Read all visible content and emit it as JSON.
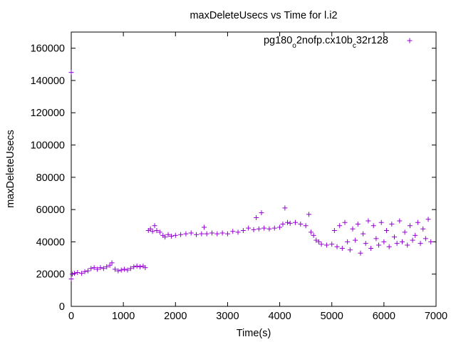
{
  "chart_data": {
    "type": "scatter",
    "title": "maxDeleteUsecs vs Time for l.i2",
    "xlabel": "Time(s)",
    "ylabel": "maxDeleteUsecs",
    "xlim": [
      0,
      7000
    ],
    "ylim": [
      0,
      170000
    ],
    "x_ticks": [
      0,
      1000,
      2000,
      3000,
      4000,
      5000,
      6000,
      7000
    ],
    "y_ticks": [
      0,
      20000,
      40000,
      60000,
      80000,
      100000,
      120000,
      140000,
      160000
    ],
    "grid": false,
    "legend_position": "top-right",
    "series": [
      {
        "name": "pg180_o2nofp.cx10b_c32r128",
        "legend_parts": [
          {
            "text": "pg180",
            "sub": false
          },
          {
            "text": "o",
            "sub": true
          },
          {
            "text": "2nofp.cx10b",
            "sub": false
          },
          {
            "text": "c",
            "sub": true
          },
          {
            "text": "32r128",
            "sub": false
          }
        ],
        "color": "#9400d3",
        "marker": "plus",
        "points": [
          [
            0,
            145000
          ],
          [
            0,
            17000
          ],
          [
            20,
            20000
          ],
          [
            60,
            20500
          ],
          [
            120,
            21000
          ],
          [
            200,
            20500
          ],
          [
            260,
            21500
          ],
          [
            320,
            22000
          ],
          [
            380,
            23500
          ],
          [
            440,
            24000
          ],
          [
            500,
            23000
          ],
          [
            560,
            24000
          ],
          [
            620,
            23500
          ],
          [
            680,
            24500
          ],
          [
            740,
            25500
          ],
          [
            780,
            27000
          ],
          [
            840,
            23000
          ],
          [
            900,
            22000
          ],
          [
            960,
            22500
          ],
          [
            1020,
            23000
          ],
          [
            1080,
            22500
          ],
          [
            1140,
            23500
          ],
          [
            1200,
            24500
          ],
          [
            1260,
            25000
          ],
          [
            1320,
            24500
          ],
          [
            1380,
            25000
          ],
          [
            1420,
            24000
          ],
          [
            1480,
            47000
          ],
          [
            1520,
            48000
          ],
          [
            1560,
            46500
          ],
          [
            1600,
            50000
          ],
          [
            1640,
            47000
          ],
          [
            1700,
            46000
          ],
          [
            1760,
            44000
          ],
          [
            1800,
            43000
          ],
          [
            1860,
            44500
          ],
          [
            1920,
            43500
          ],
          [
            2000,
            44000
          ],
          [
            2100,
            44500
          ],
          [
            2200,
            45000
          ],
          [
            2300,
            45500
          ],
          [
            2400,
            44500
          ],
          [
            2500,
            45000
          ],
          [
            2550,
            49000
          ],
          [
            2600,
            45000
          ],
          [
            2700,
            45500
          ],
          [
            2800,
            45000
          ],
          [
            2900,
            45500
          ],
          [
            3000,
            45000
          ],
          [
            3100,
            46500
          ],
          [
            3200,
            46000
          ],
          [
            3300,
            47000
          ],
          [
            3400,
            48500
          ],
          [
            3500,
            47500
          ],
          [
            3550,
            55000
          ],
          [
            3600,
            48000
          ],
          [
            3650,
            58000
          ],
          [
            3700,
            48500
          ],
          [
            3800,
            48000
          ],
          [
            3900,
            48500
          ],
          [
            4000,
            49000
          ],
          [
            4060,
            51000
          ],
          [
            4100,
            61000
          ],
          [
            4150,
            52000
          ],
          [
            4200,
            51500
          ],
          [
            4300,
            52000
          ],
          [
            4400,
            51000
          ],
          [
            4500,
            50000
          ],
          [
            4560,
            57000
          ],
          [
            4600,
            46000
          ],
          [
            4650,
            44000
          ],
          [
            4700,
            41000
          ],
          [
            4750,
            40000
          ],
          [
            4800,
            38500
          ],
          [
            4900,
            38000
          ],
          [
            5000,
            38500
          ],
          [
            5050,
            47000
          ],
          [
            5100,
            37000
          ],
          [
            5150,
            50000
          ],
          [
            5200,
            36000
          ],
          [
            5250,
            52000
          ],
          [
            5300,
            40000
          ],
          [
            5350,
            35000
          ],
          [
            5400,
            48000
          ],
          [
            5450,
            41000
          ],
          [
            5500,
            51000
          ],
          [
            5550,
            33000
          ],
          [
            5600,
            45000
          ],
          [
            5650,
            39000
          ],
          [
            5700,
            53000
          ],
          [
            5750,
            36000
          ],
          [
            5800,
            50000
          ],
          [
            5850,
            42000
          ],
          [
            5900,
            38000
          ],
          [
            5950,
            52000
          ],
          [
            6000,
            40000
          ],
          [
            6050,
            47000
          ],
          [
            6100,
            37000
          ],
          [
            6150,
            51000
          ],
          [
            6200,
            43000
          ],
          [
            6250,
            39000
          ],
          [
            6300,
            53000
          ],
          [
            6350,
            40000
          ],
          [
            6400,
            46000
          ],
          [
            6450,
            38000
          ],
          [
            6500,
            50000
          ],
          [
            6550,
            41000
          ],
          [
            6600,
            44000
          ],
          [
            6650,
            52000
          ],
          [
            6700,
            39000
          ],
          [
            6750,
            48000
          ],
          [
            6800,
            42000
          ],
          [
            6850,
            54000
          ],
          [
            6900,
            40000
          ]
        ]
      }
    ]
  }
}
